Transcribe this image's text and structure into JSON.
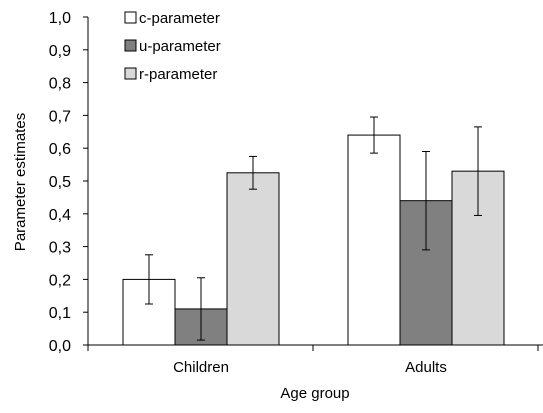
{
  "chart_data": {
    "type": "bar",
    "title": "",
    "xlabel": "Age group",
    "ylabel": "Parameter estimates",
    "ylim": [
      0,
      1
    ],
    "ytick_step": 0.1,
    "yticks": [
      "0,0",
      "0,1",
      "0,2",
      "0,3",
      "0,4",
      "0,5",
      "0,6",
      "0,7",
      "0,8",
      "0,9",
      "1,0"
    ],
    "categories": [
      "Children",
      "Adults"
    ],
    "grid": false,
    "legend_position": "top-left",
    "series": [
      {
        "name": "c-parameter",
        "color": "#ffffff",
        "values": [
          0.2,
          0.64
        ],
        "errors": [
          0.075,
          0.055
        ]
      },
      {
        "name": "u-parameter",
        "color": "#808080",
        "values": [
          0.11,
          0.44
        ],
        "errors": [
          0.095,
          0.15
        ]
      },
      {
        "name": "r-parameter",
        "color": "#d9d9d9",
        "values": [
          0.525,
          0.53
        ],
        "errors": [
          0.05,
          0.135
        ]
      }
    ]
  }
}
